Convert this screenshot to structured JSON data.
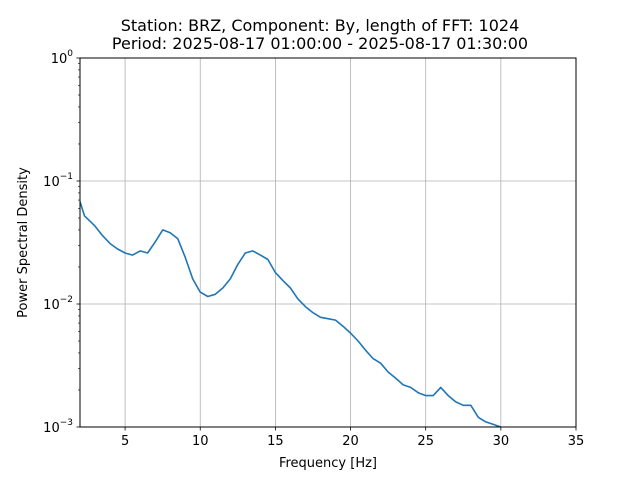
{
  "chart_data": {
    "type": "line",
    "title_line1": "Station: BRZ, Component: By, length of FFT: 1024",
    "title_line2": "Period: 2025-08-17 01:00:00 - 2025-08-17 01:30:00",
    "xlabel": "Frequency [Hz]",
    "ylabel": "Power Spectral Density",
    "xlim": [
      2,
      35
    ],
    "ylim": [
      0.001,
      1
    ],
    "yscale": "log",
    "grid": true,
    "x_ticks": [
      5,
      10,
      15,
      20,
      25,
      30,
      35
    ],
    "x_tick_labels": [
      "5",
      "10",
      "15",
      "20",
      "25",
      "30",
      "35"
    ],
    "y_ticks": [
      0.001,
      0.01,
      0.1,
      1
    ],
    "y_tick_labels": [
      {
        "base": "10",
        "exp": "−3"
      },
      {
        "base": "10",
        "exp": "−2"
      },
      {
        "base": "10",
        "exp": "−1"
      },
      {
        "base": "10",
        "exp": "0"
      }
    ],
    "line_color": "#1f77b4",
    "series": [
      {
        "x": [
          2.0,
          2.3,
          2.6,
          3.0,
          3.5,
          4.0,
          4.5,
          5.0,
          5.5,
          6.0,
          6.5,
          7.0,
          7.5,
          8.0,
          8.5,
          9.0,
          9.5,
          10.0,
          10.5,
          11.0,
          11.5,
          12.0,
          12.5,
          13.0,
          13.5,
          14.0,
          14.5,
          15.0,
          15.5,
          16.0,
          16.5,
          17.0,
          17.5,
          18.0,
          18.5,
          19.0,
          19.5,
          20.0,
          20.5,
          21.0,
          21.5,
          22.0,
          22.5,
          23.0,
          23.5,
          24.0,
          24.5,
          25.0,
          25.5,
          26.0,
          26.5,
          27.0,
          27.5,
          28.0,
          28.5,
          29.0,
          29.5,
          30.0
        ],
        "y": [
          0.068,
          0.052,
          0.048,
          0.043,
          0.036,
          0.031,
          0.028,
          0.026,
          0.025,
          0.027,
          0.026,
          0.032,
          0.04,
          0.038,
          0.034,
          0.024,
          0.016,
          0.0125,
          0.0115,
          0.012,
          0.0135,
          0.016,
          0.021,
          0.026,
          0.027,
          0.025,
          0.023,
          0.018,
          0.0155,
          0.0135,
          0.011,
          0.0095,
          0.0085,
          0.0078,
          0.0076,
          0.0074,
          0.0066,
          0.0058,
          0.005,
          0.0042,
          0.0036,
          0.0033,
          0.0028,
          0.0025,
          0.0022,
          0.0021,
          0.0019,
          0.0018,
          0.0018,
          0.0021,
          0.0018,
          0.0016,
          0.0015,
          0.0015,
          0.0012,
          0.0011,
          0.00105,
          0.001
        ]
      }
    ]
  }
}
